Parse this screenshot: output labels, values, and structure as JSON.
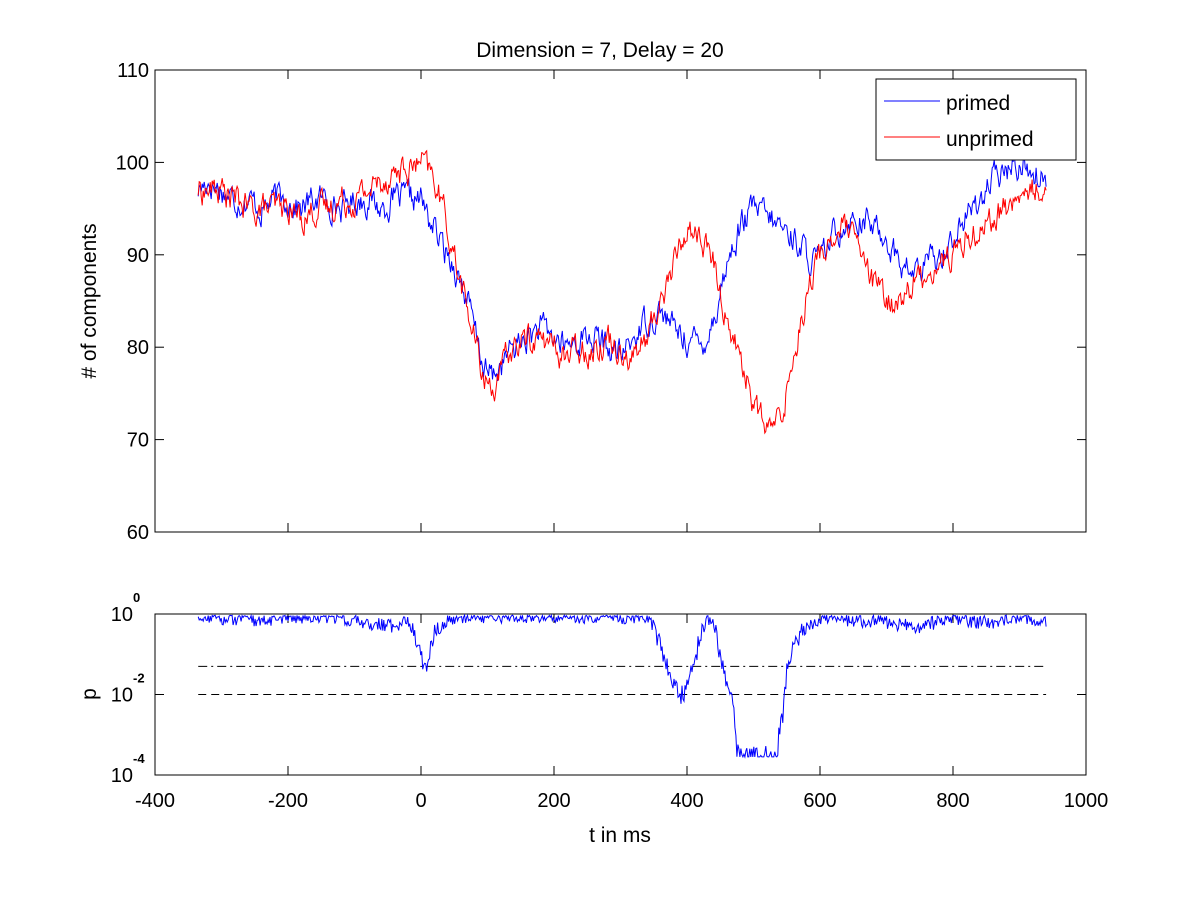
{
  "chart_data": [
    {
      "type": "line",
      "title": "Dimension  = 7, Delay = 20",
      "xlabel": "",
      "ylabel": "# of components",
      "xlim": [
        -400,
        1000
      ],
      "ylim": [
        60,
        110
      ],
      "yticks": [
        60,
        70,
        80,
        90,
        100,
        110
      ],
      "xticks": [
        -400,
        -200,
        0,
        200,
        400,
        600,
        800,
        1000
      ],
      "show_x_tick_labels": false,
      "legend_position": "top-right",
      "series": [
        {
          "name": "primed",
          "color": "#0000ff",
          "x": [
            -335,
            -320,
            -300,
            -280,
            -260,
            -240,
            -220,
            -200,
            -180,
            -160,
            -140,
            -120,
            -100,
            -80,
            -60,
            -40,
            -20,
            0,
            10,
            20,
            30,
            40,
            50,
            60,
            70,
            80,
            90,
            100,
            110,
            120,
            130,
            140,
            160,
            180,
            200,
            220,
            240,
            260,
            280,
            300,
            320,
            340,
            360,
            380,
            400,
            420,
            440,
            460,
            480,
            500,
            520,
            540,
            560,
            580,
            600,
            620,
            640,
            660,
            680,
            700,
            720,
            740,
            760,
            780,
            800,
            820,
            840,
            860,
            880,
            900,
            920,
            940
          ],
          "values": [
            97,
            98,
            97,
            96,
            96,
            95,
            96,
            96,
            95,
            96,
            96,
            95,
            96,
            96,
            95,
            96,
            96,
            96,
            94,
            93,
            91,
            90,
            89,
            87,
            85,
            82,
            79,
            77,
            77,
            78,
            79,
            80,
            81,
            82,
            81,
            80,
            81,
            81,
            80,
            79,
            81,
            83,
            84,
            82,
            81,
            80,
            83,
            89,
            93,
            95,
            94,
            93,
            92,
            90,
            89,
            92,
            94,
            94,
            93,
            92,
            89,
            88,
            89,
            90,
            92,
            94,
            96,
            98,
            99,
            100,
            99,
            98
          ]
        },
        {
          "name": "unprimed",
          "color": "#ff0000",
          "x": [
            -335,
            -320,
            -300,
            -280,
            -260,
            -240,
            -220,
            -200,
            -180,
            -160,
            -140,
            -120,
            -100,
            -80,
            -60,
            -40,
            -20,
            0,
            10,
            20,
            30,
            40,
            50,
            60,
            70,
            80,
            90,
            100,
            110,
            120,
            130,
            140,
            160,
            180,
            200,
            220,
            240,
            260,
            280,
            300,
            320,
            340,
            360,
            380,
            400,
            420,
            440,
            460,
            480,
            500,
            520,
            540,
            560,
            580,
            600,
            620,
            640,
            660,
            680,
            700,
            720,
            740,
            760,
            780,
            800,
            820,
            840,
            860,
            880,
            900,
            920,
            940
          ],
          "values": [
            97,
            97,
            97,
            96,
            95,
            95,
            95,
            95,
            94,
            95,
            95,
            96,
            96,
            97,
            98,
            99,
            99,
            100,
            99,
            98,
            96,
            93,
            90,
            87,
            84,
            81,
            78,
            76,
            76,
            77,
            79,
            80,
            81,
            81,
            80,
            79,
            80,
            80,
            81,
            80,
            79,
            81,
            85,
            89,
            93,
            92,
            89,
            83,
            79,
            74,
            71,
            72,
            79,
            86,
            90,
            92,
            93,
            90,
            87,
            85,
            85,
            87,
            88,
            89,
            90,
            92,
            93,
            94,
            95,
            96,
            97,
            98
          ]
        }
      ]
    },
    {
      "type": "line",
      "title": "",
      "xlabel": "t in ms",
      "ylabel": "p",
      "xlim": [
        -400,
        1000
      ],
      "ylim": [
        0.0001,
        1
      ],
      "yscale": "log",
      "xticks": [
        -400,
        -200,
        0,
        200,
        400,
        600,
        800,
        1000
      ],
      "xtick_labels": [
        "-400",
        "-200",
        "0",
        "200",
        "400",
        "600",
        "800",
        "1000"
      ],
      "ytick_labels": [
        {
          "base": "10",
          "exp": "0",
          "value": 1
        },
        {
          "base": "10",
          "exp": "-2",
          "value": 0.01
        },
        {
          "base": "10",
          "exp": "-4",
          "value": 0.0001
        }
      ],
      "reference_lines": [
        {
          "style": "dash-dot",
          "value": 0.05
        },
        {
          "style": "dashed",
          "value": 0.01
        }
      ],
      "series": [
        {
          "color": "#0000ff",
          "x": [
            -335,
            -300,
            -250,
            -200,
            -150,
            -100,
            -50,
            -20,
            -10,
            0,
            5,
            10,
            20,
            40,
            80,
            120,
            160,
            200,
            240,
            280,
            300,
            330,
            350,
            360,
            370,
            380,
            390,
            395,
            400,
            410,
            420,
            430,
            440,
            450,
            460,
            470,
            475,
            480,
            500,
            520,
            535,
            540,
            545,
            550,
            560,
            580,
            600,
            650,
            700,
            750,
            800,
            850,
            900,
            940
          ],
          "values": [
            0.9,
            0.8,
            0.7,
            0.8,
            0.9,
            0.7,
            0.5,
            0.6,
            0.3,
            0.1,
            0.04,
            0.08,
            0.3,
            0.7,
            0.9,
            0.85,
            0.9,
            0.9,
            0.85,
            0.9,
            0.8,
            0.9,
            0.5,
            0.15,
            0.05,
            0.02,
            0.01,
            0.01,
            0.015,
            0.05,
            0.3,
            0.8,
            0.6,
            0.1,
            0.02,
            0.005,
            0.0005,
            0.0003,
            0.0003,
            0.0003,
            0.0003,
            0.002,
            0.004,
            0.05,
            0.2,
            0.5,
            0.8,
            0.7,
            0.6,
            0.5,
            0.8,
            0.6,
            0.9,
            0.6
          ]
        }
      ]
    }
  ]
}
